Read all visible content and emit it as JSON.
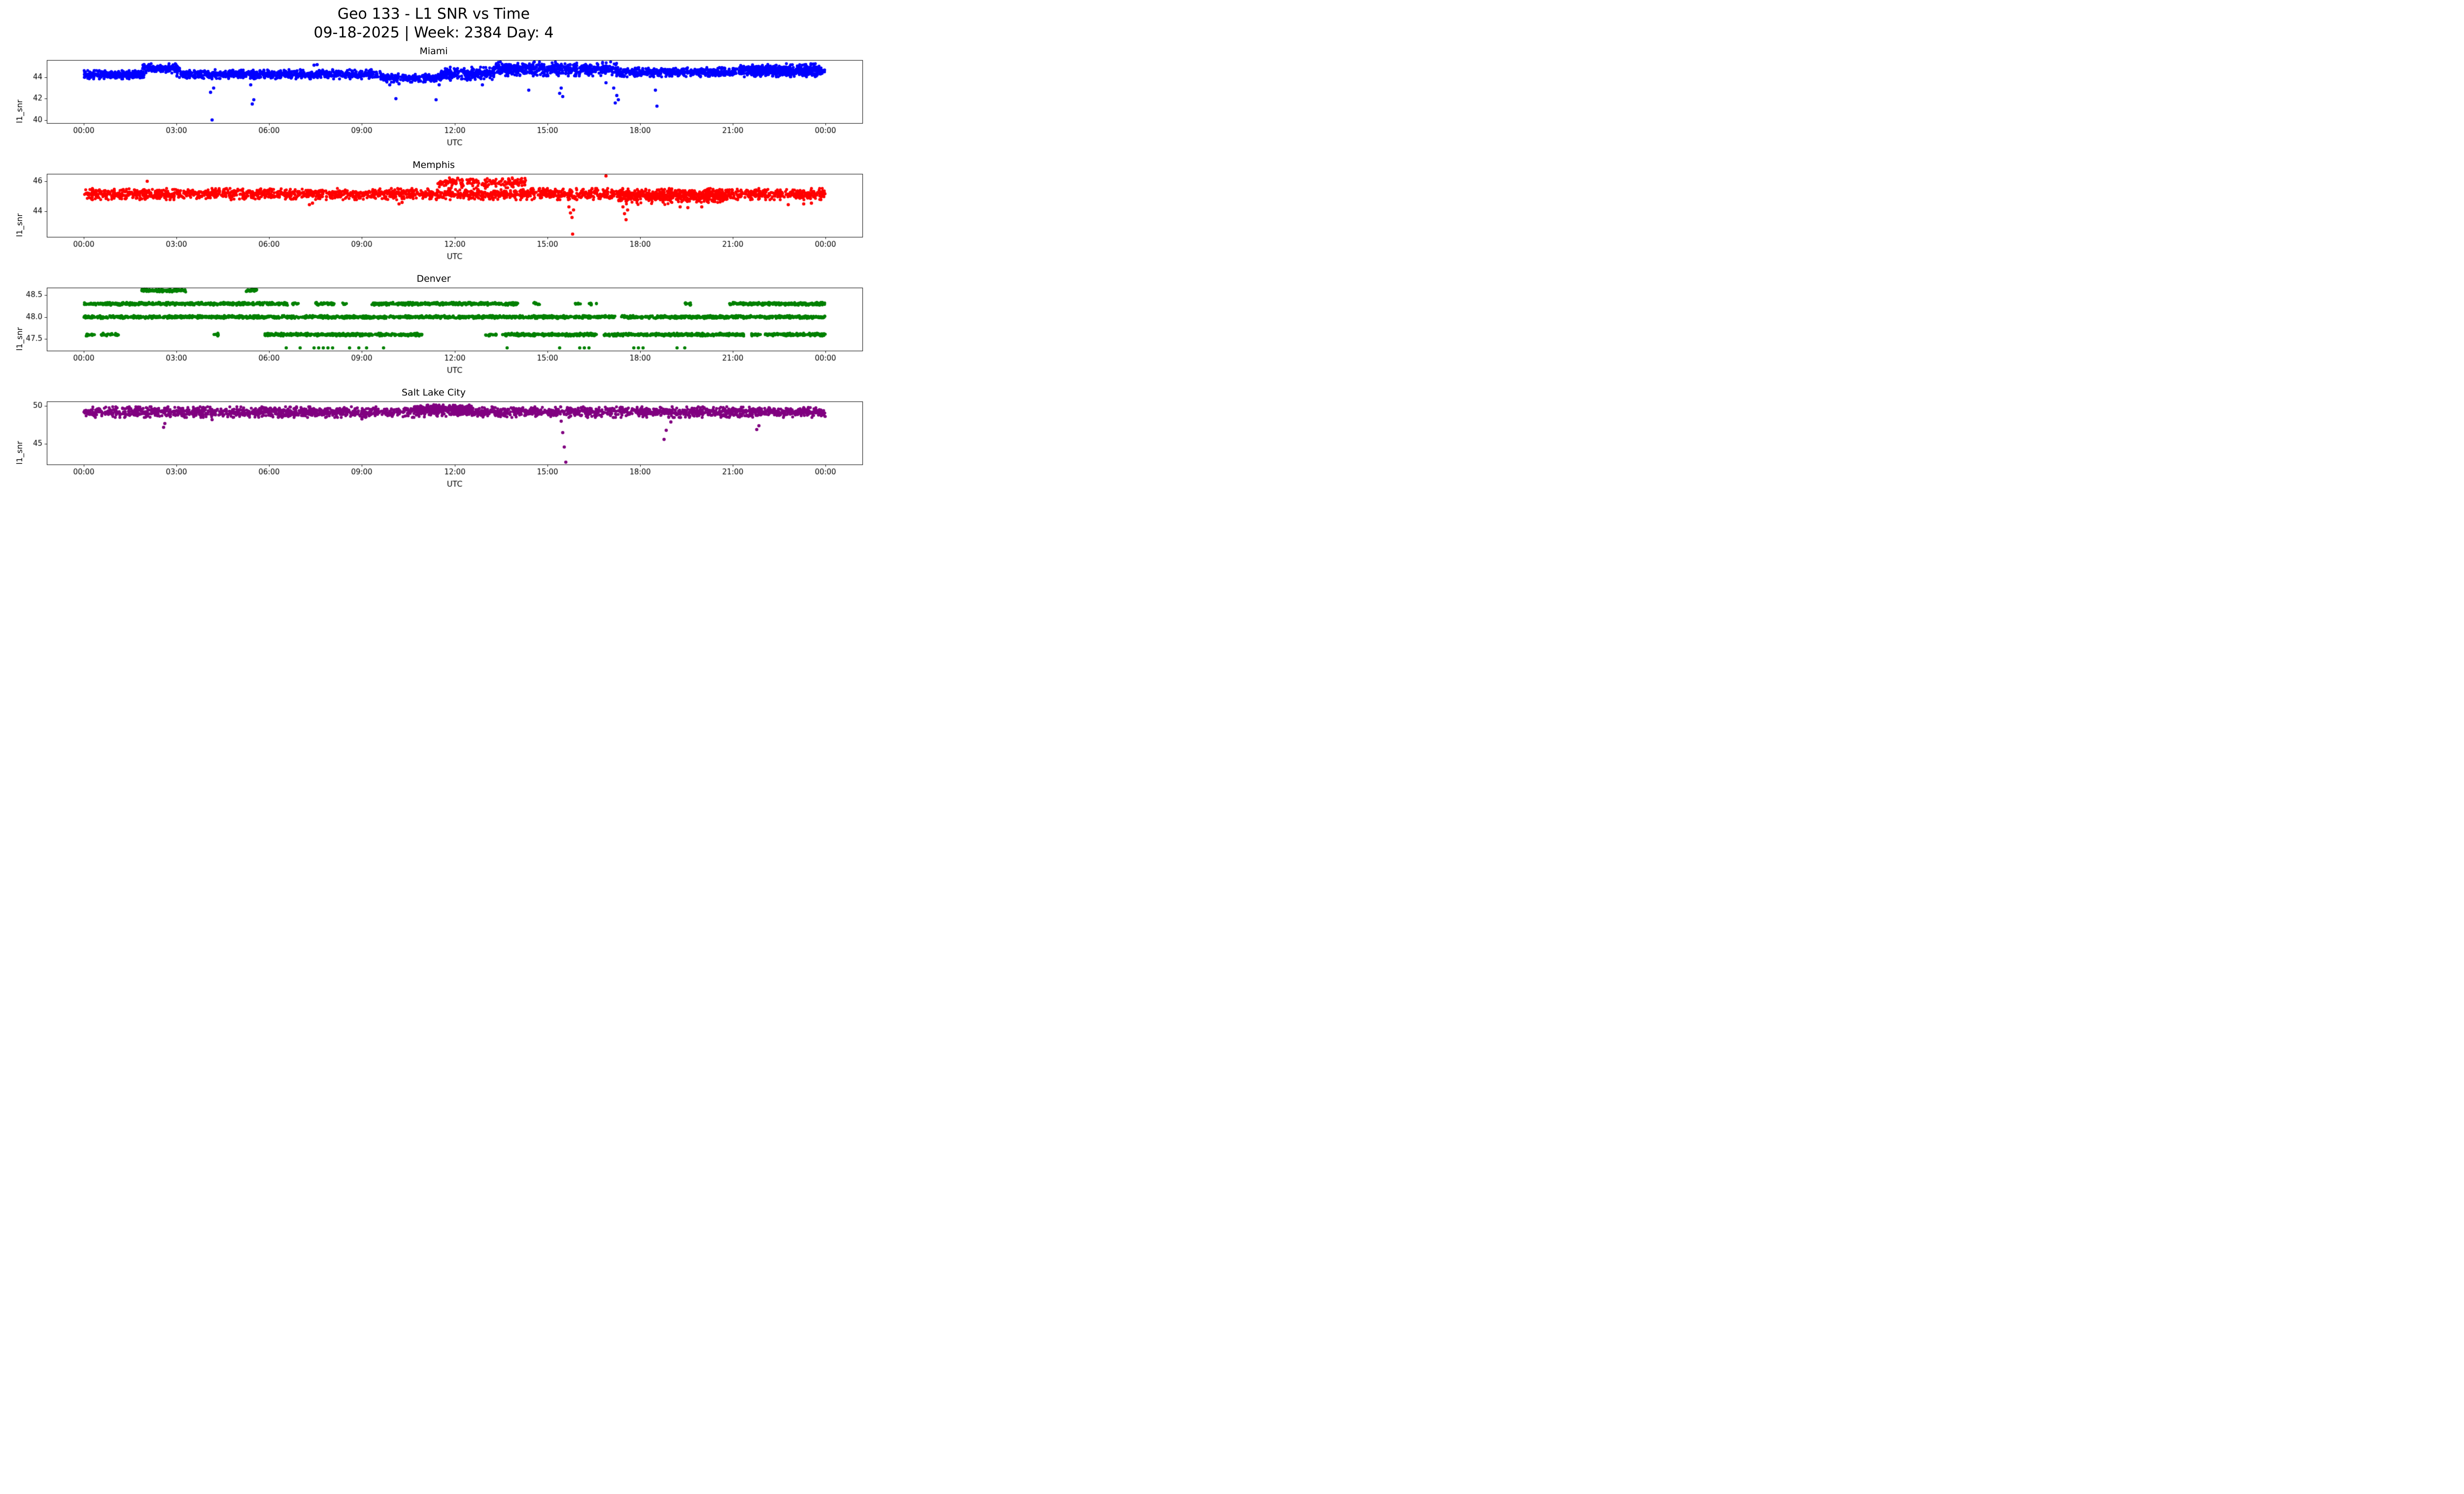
{
  "figure": {
    "title": "Geo 133 - L1 SNR vs Time",
    "subtitle": "09-18-2025 | Week: 2384 Day: 4",
    "background": "#ffffff"
  },
  "chart_data": [
    {
      "type": "scatter",
      "title": "Miami",
      "color": "#0000ff",
      "marker": "circle",
      "xlabel": "UTC",
      "ylabel": "l1_snr",
      "xlim": [
        -1.2,
        25.2
      ],
      "ylim": [
        39.7,
        45.63
      ],
      "x_ticks": {
        "values": [
          0,
          3,
          6,
          9,
          12,
          15,
          18,
          21,
          24
        ],
        "labels": [
          "00:00",
          "03:00",
          "06:00",
          "09:00",
          "12:00",
          "15:00",
          "18:00",
          "21:00",
          "00:00"
        ]
      },
      "y_ticks": {
        "values": [
          40,
          42,
          44
        ],
        "labels": [
          "40",
          "42",
          "44"
        ]
      },
      "grid": false,
      "seed": 11,
      "bands": [
        [
          0.0,
          1.95,
          44.25,
          0.18,
          280
        ],
        [
          1.9,
          3.1,
          44.85,
          0.2,
          150
        ],
        [
          3.0,
          9.65,
          44.3,
          0.2,
          750
        ],
        [
          9.6,
          11.6,
          43.95,
          0.18,
          230
        ],
        [
          11.55,
          13.3,
          44.35,
          0.28,
          230
        ],
        [
          13.3,
          17.25,
          44.8,
          0.3,
          520
        ],
        [
          17.2,
          24.0,
          44.5,
          0.2,
          820
        ],
        [
          21.2,
          23.9,
          44.85,
          0.2,
          220
        ]
      ],
      "outliers": [
        [
          4.15,
          40.0
        ],
        [
          4.1,
          42.6
        ],
        [
          4.2,
          43.0
        ],
        [
          5.45,
          41.5
        ],
        [
          5.5,
          41.9
        ],
        [
          5.4,
          43.3
        ],
        [
          7.45,
          45.15
        ],
        [
          7.55,
          45.2
        ],
        [
          9.9,
          43.3
        ],
        [
          10.1,
          42.0
        ],
        [
          10.2,
          43.4
        ],
        [
          11.4,
          41.9
        ],
        [
          11.5,
          43.3
        ],
        [
          12.9,
          43.3
        ],
        [
          14.4,
          42.8
        ],
        [
          15.4,
          42.5
        ],
        [
          15.5,
          42.2
        ],
        [
          15.45,
          43.0
        ],
        [
          16.9,
          43.5
        ],
        [
          17.15,
          43.0
        ],
        [
          17.2,
          41.6
        ],
        [
          17.25,
          42.3
        ],
        [
          17.3,
          41.9
        ],
        [
          18.5,
          42.8
        ],
        [
          18.55,
          41.3
        ]
      ]
    },
    {
      "type": "scatter",
      "title": "Memphis",
      "color": "#ff0000",
      "marker": "circle",
      "xlabel": "UTC",
      "ylabel": "l1_snr",
      "xlim": [
        -1.2,
        25.2
      ],
      "ylim": [
        42.31,
        46.49
      ],
      "x_ticks": {
        "values": [
          0,
          3,
          6,
          9,
          12,
          15,
          18,
          21,
          24
        ],
        "labels": [
          "00:00",
          "03:00",
          "06:00",
          "09:00",
          "12:00",
          "15:00",
          "18:00",
          "21:00",
          "00:00"
        ]
      },
      "y_ticks": {
        "values": [
          44,
          46
        ],
        "labels": [
          "44",
          "46"
        ]
      },
      "grid": false,
      "seed": 22,
      "bands": [
        [
          0.0,
          24.0,
          45.15,
          0.17,
          2300
        ],
        [
          11.4,
          14.3,
          45.9,
          0.15,
          170
        ],
        [
          17.3,
          20.9,
          44.9,
          0.2,
          260
        ]
      ],
      "outliers": [
        [
          2.05,
          46.0
        ],
        [
          12.1,
          46.2
        ],
        [
          13.55,
          46.15
        ],
        [
          16.9,
          46.35
        ],
        [
          7.3,
          44.45
        ],
        [
          7.4,
          44.55
        ],
        [
          10.2,
          44.5
        ],
        [
          10.3,
          44.6
        ],
        [
          15.7,
          44.3
        ],
        [
          15.75,
          43.9
        ],
        [
          15.8,
          43.6
        ],
        [
          15.82,
          42.5
        ],
        [
          15.85,
          44.1
        ],
        [
          17.45,
          44.3
        ],
        [
          17.5,
          43.85
        ],
        [
          17.55,
          43.45
        ],
        [
          17.6,
          44.1
        ],
        [
          19.3,
          44.3
        ],
        [
          19.55,
          44.25
        ],
        [
          20.0,
          44.3
        ],
        [
          22.8,
          44.45
        ],
        [
          23.3,
          44.5
        ],
        [
          23.55,
          44.55
        ]
      ]
    },
    {
      "type": "scatter",
      "title": "Denver",
      "color": "#008000",
      "marker": "circle",
      "xlabel": "UTC",
      "ylabel": "l1_snr",
      "xlim": [
        -1.2,
        25.2
      ],
      "ylim": [
        47.235,
        48.665
      ],
      "x_ticks": {
        "values": [
          0,
          3,
          6,
          9,
          12,
          15,
          18,
          21,
          24
        ],
        "labels": [
          "00:00",
          "03:00",
          "06:00",
          "09:00",
          "12:00",
          "15:00",
          "18:00",
          "21:00",
          "00:00"
        ]
      },
      "y_ticks": {
        "values": [
          47.5,
          48.0,
          48.5
        ],
        "labels": [
          "47.5",
          "48.0",
          "48.5"
        ]
      },
      "grid": false,
      "seed": 33,
      "bands": [
        [
          1.85,
          3.3,
          48.6,
          0.015,
          150
        ],
        [
          5.25,
          5.6,
          48.6,
          0.015,
          40
        ],
        [
          0.0,
          6.6,
          48.3,
          0.015,
          600
        ],
        [
          6.75,
          6.95,
          48.3,
          0.015,
          12
        ],
        [
          7.5,
          8.1,
          48.3,
          0.015,
          45
        ],
        [
          8.35,
          8.5,
          48.3,
          0.015,
          8
        ],
        [
          9.3,
          14.05,
          48.3,
          0.015,
          430
        ],
        [
          14.55,
          14.75,
          48.3,
          0.015,
          12
        ],
        [
          15.9,
          16.1,
          48.3,
          0.015,
          12
        ],
        [
          16.35,
          16.6,
          48.3,
          0.015,
          14
        ],
        [
          19.45,
          19.65,
          48.3,
          0.015,
          12
        ],
        [
          20.9,
          24.0,
          48.3,
          0.015,
          290
        ],
        [
          0.0,
          17.2,
          48.0,
          0.015,
          1550
        ],
        [
          17.4,
          24.0,
          48.0,
          0.015,
          600
        ],
        [
          0.0,
          0.4,
          47.6,
          0.015,
          20
        ],
        [
          0.55,
          1.15,
          47.6,
          0.015,
          32
        ],
        [
          4.2,
          4.4,
          47.6,
          0.015,
          10
        ],
        [
          5.85,
          10.95,
          47.6,
          0.015,
          470
        ],
        [
          13.0,
          13.35,
          47.6,
          0.015,
          20
        ],
        [
          13.55,
          16.6,
          47.6,
          0.015,
          280
        ],
        [
          16.8,
          21.4,
          47.6,
          0.015,
          420
        ],
        [
          21.6,
          21.9,
          47.6,
          0.015,
          18
        ],
        [
          22.05,
          24.0,
          47.6,
          0.015,
          180
        ]
      ],
      "outliers": [
        [
          6.55,
          47.3
        ],
        [
          7.0,
          47.3
        ],
        [
          7.45,
          47.3
        ],
        [
          7.6,
          47.3
        ],
        [
          7.75,
          47.3
        ],
        [
          7.9,
          47.3
        ],
        [
          8.05,
          47.3
        ],
        [
          8.6,
          47.3
        ],
        [
          8.9,
          47.3
        ],
        [
          9.15,
          47.3
        ],
        [
          9.7,
          47.3
        ],
        [
          13.7,
          47.3
        ],
        [
          15.4,
          47.3
        ],
        [
          16.05,
          47.3
        ],
        [
          16.2,
          47.3
        ],
        [
          16.35,
          47.3
        ],
        [
          17.8,
          47.3
        ],
        [
          17.95,
          47.3
        ],
        [
          18.1,
          47.3
        ],
        [
          19.2,
          47.3
        ],
        [
          19.45,
          47.3
        ]
      ]
    },
    {
      "type": "scatter",
      "title": "Salt Lake City",
      "color": "#800080",
      "marker": "circle",
      "xlabel": "UTC",
      "ylabel": "l1_snr",
      "xlim": [
        -1.2,
        25.2
      ],
      "ylim": [
        42.3,
        50.6
      ],
      "x_ticks": {
        "values": [
          0,
          3,
          6,
          9,
          12,
          15,
          18,
          21,
          24
        ],
        "labels": [
          "00:00",
          "03:00",
          "06:00",
          "09:00",
          "12:00",
          "15:00",
          "18:00",
          "21:00",
          "00:00"
        ]
      },
      "y_ticks": {
        "values": [
          45,
          50
        ],
        "labels": [
          "45",
          "50"
        ]
      },
      "grid": false,
      "seed": 44,
      "bands": [
        [
          0.0,
          24.0,
          49.2,
          0.32,
          2500
        ],
        [
          10.7,
          12.6,
          49.7,
          0.22,
          220
        ]
      ],
      "outliers": [
        [
          2.58,
          47.2
        ],
        [
          2.62,
          47.7
        ],
        [
          4.15,
          48.2
        ],
        [
          9.0,
          48.3
        ],
        [
          15.45,
          48.0
        ],
        [
          15.5,
          46.5
        ],
        [
          15.55,
          44.6
        ],
        [
          15.6,
          42.6
        ],
        [
          18.78,
          45.6
        ],
        [
          18.85,
          46.8
        ],
        [
          19.0,
          47.9
        ],
        [
          21.78,
          46.9
        ],
        [
          21.85,
          47.4
        ]
      ]
    }
  ]
}
